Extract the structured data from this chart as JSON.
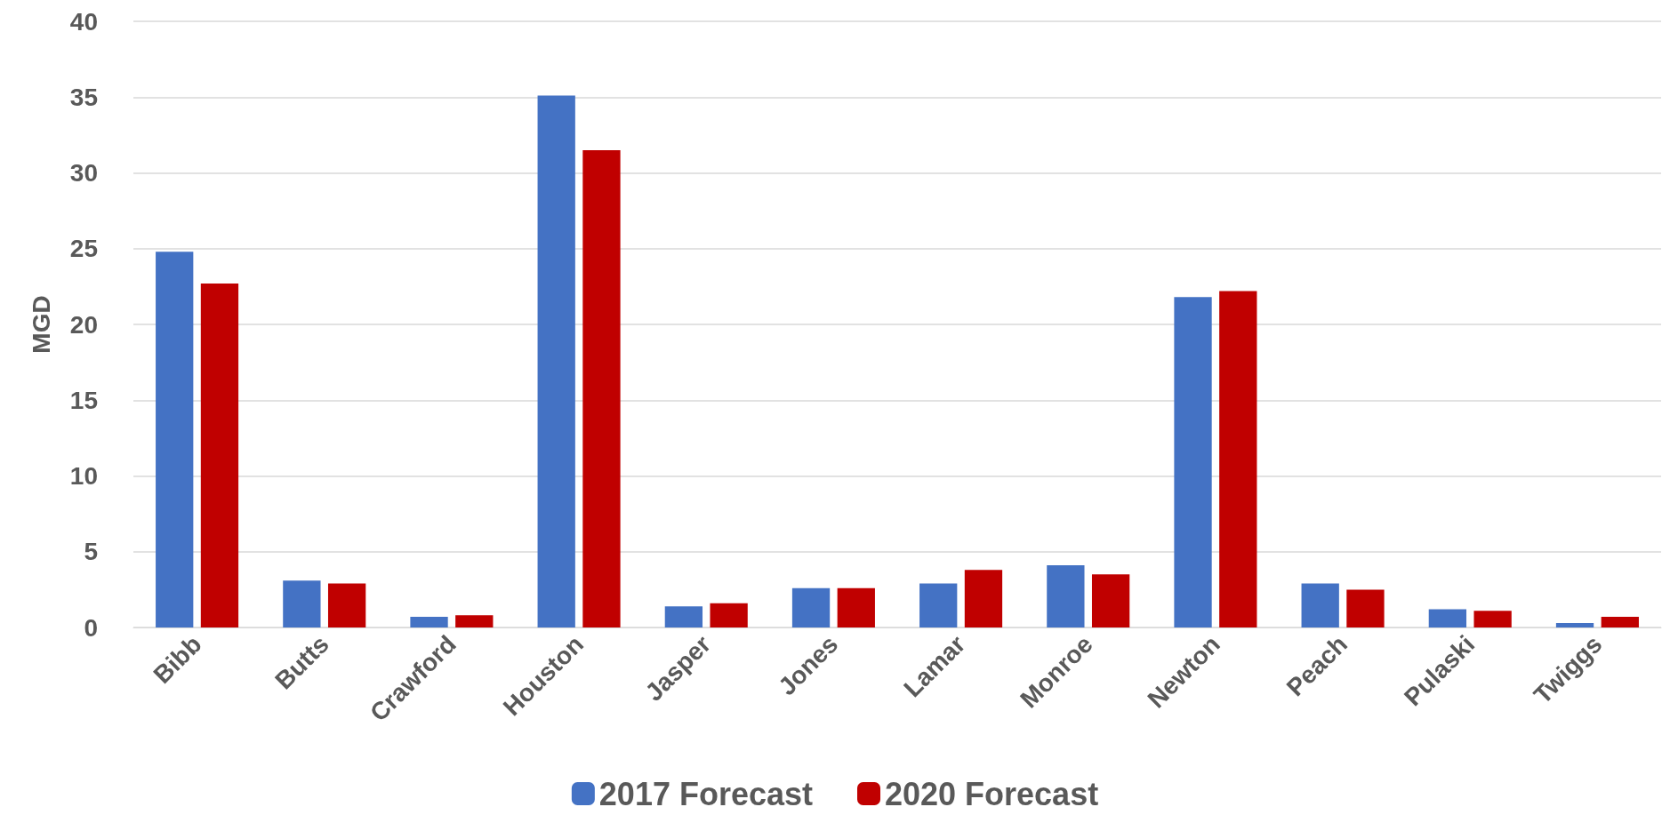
{
  "chart_data": {
    "type": "bar",
    "ylabel": "MGD",
    "categories": [
      "Bibb",
      "Butts",
      "Crawford",
      "Houston",
      "Jasper",
      "Jones",
      "Lamar",
      "Monroe",
      "Newton",
      "Peach",
      "Pulaski",
      "Twiggs"
    ],
    "series": [
      {
        "name": "2017 Forecast",
        "color": "#4472c4",
        "values": [
          24.8,
          3.1,
          0.7,
          35.1,
          1.4,
          2.6,
          2.9,
          4.1,
          21.8,
          2.9,
          1.2,
          0.3
        ]
      },
      {
        "name": "2020 Forecast",
        "color": "#c00000",
        "values": [
          22.7,
          2.9,
          0.8,
          31.5,
          1.6,
          2.6,
          3.8,
          3.5,
          22.2,
          2.5,
          1.1,
          0.7
        ]
      }
    ],
    "ylim": [
      0,
      40
    ],
    "yticks": [
      0,
      5,
      10,
      15,
      20,
      25,
      30,
      35,
      40
    ],
    "grid": "y",
    "legend": "bottom"
  }
}
